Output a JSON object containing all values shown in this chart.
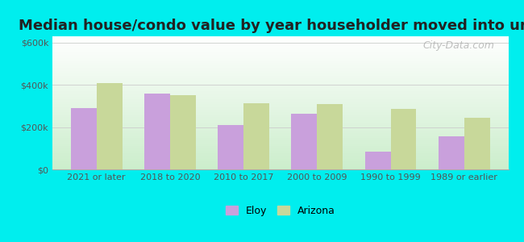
{
  "title": "Median house/condo value by year householder moved into unit",
  "categories": [
    "2021 or later",
    "2018 to 2020",
    "2010 to 2017",
    "2000 to 2009",
    "1990 to 1999",
    "1989 or earlier"
  ],
  "eloy_values": [
    290000,
    360000,
    210000,
    265000,
    85000,
    155000
  ],
  "arizona_values": [
    410000,
    350000,
    315000,
    310000,
    285000,
    245000
  ],
  "eloy_color": "#c9a0dc",
  "arizona_color": "#c8d89a",
  "background_color": "#00eeee",
  "ylabel_ticks": [
    0,
    200000,
    400000,
    600000
  ],
  "ylabel_labels": [
    "$0",
    "$200k",
    "$400k",
    "$600k"
  ],
  "ylim": [
    0,
    630000
  ],
  "bar_width": 0.35,
  "legend_labels": [
    "Eloy",
    "Arizona"
  ],
  "watermark": "City-Data.com",
  "title_fontsize": 13,
  "tick_fontsize": 8,
  "watermark_fontsize": 9
}
